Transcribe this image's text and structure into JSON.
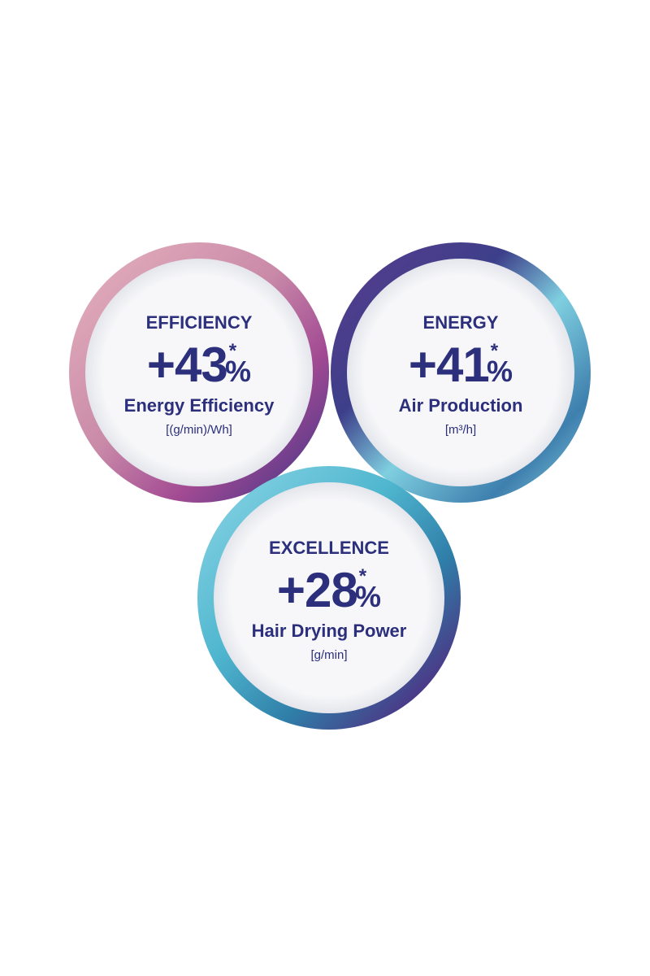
{
  "circles": [
    {
      "heading": "EFFICIENCY",
      "value": "+43",
      "asterisk": "*",
      "percent": "%",
      "label": "Energy Efficiency",
      "unit": "[(g/min)/Wh]"
    },
    {
      "heading": "ENERGY",
      "value": "+41",
      "asterisk": "*",
      "percent": "%",
      "label": "Air Production",
      "unit": "[m³/h]"
    },
    {
      "heading": "EXCELLENCE",
      "value": "+28",
      "asterisk": "*",
      "percent": "%",
      "label": "Hair Drying Power",
      "unit": "[g/min]"
    }
  ]
}
